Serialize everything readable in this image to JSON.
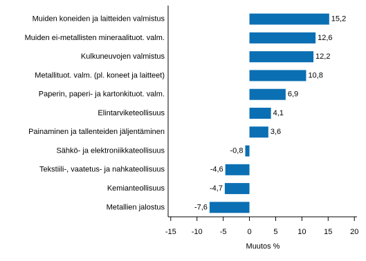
{
  "chart_data": {
    "type": "hbar",
    "categories": [
      "Muiden koneiden ja laitteiden valmistus",
      "Muiden ei-metallisten mineraalituot. valm.",
      "Kulkuneuvojen valmistus",
      "Metallituot. valm. (pl. koneet ja laitteet)",
      "Paperin, paperi- ja kartonkituot. valm.",
      "Elintarviketeollisuus",
      "Painaminen ja tallenteiden jäljentäminen",
      "Sähkö- ja elektroniikkateollisuus",
      "Tekstiili-, vaatetus- ja nahkateollisuus",
      "Kemianteollisuus",
      "Metallien jalostus"
    ],
    "values": [
      15.2,
      12.6,
      12.2,
      10.8,
      6.9,
      4.1,
      3.6,
      -0.8,
      -4.6,
      -4.7,
      -7.6
    ],
    "value_labels": [
      "15,2",
      "12,6",
      "12,2",
      "10,8",
      "6,9",
      "4,1",
      "3,6",
      "-0,8",
      "-4,6",
      "-4,7",
      "-7,6"
    ],
    "color": "#0b6fb3",
    "xlabel": "Muutos %",
    "xlim": [
      -15.5,
      20.5
    ],
    "xticks": [
      -15,
      -10,
      -5,
      0,
      5,
      10,
      15,
      20
    ]
  }
}
